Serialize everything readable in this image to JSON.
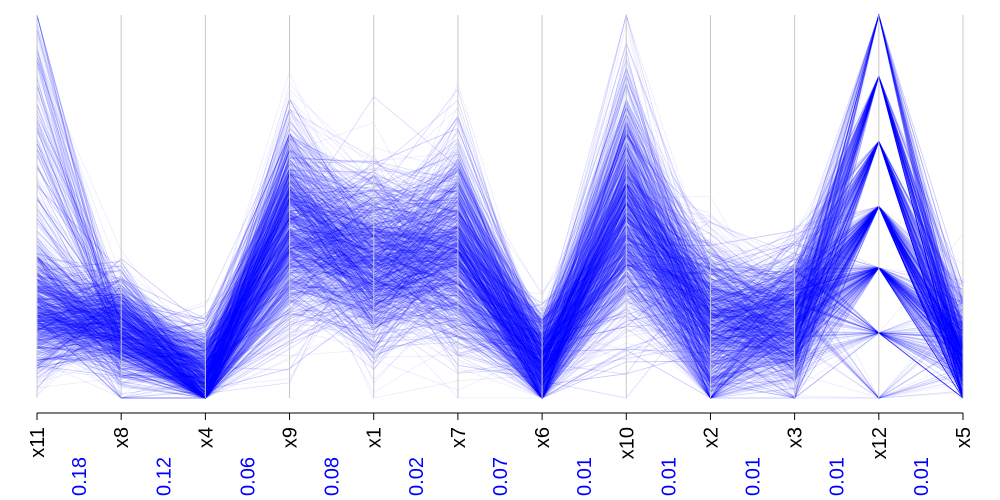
{
  "chart_data": {
    "type": "parallel-coordinates",
    "axes": [
      "x11",
      "x8",
      "x4",
      "x9",
      "x1",
      "x7",
      "x6",
      "x10",
      "x2",
      "x3",
      "x12",
      "x5"
    ],
    "between_axis_values": [
      "0.18",
      "0.12",
      "0.06",
      "0.08",
      "0.02",
      "0.07",
      "0.01",
      "0.01",
      "0.01",
      "0.01",
      "0.01"
    ],
    "line_color": "#0000ff",
    "label_color": "#0000ff",
    "axis_color": "#c8c8c8",
    "axis_labels_color": "#000000",
    "axis_range_normalized": [
      0,
      1
    ],
    "typical_profile": {
      "x11": 0.22,
      "x8": 0.18,
      "x4": 0.05,
      "x9": 0.45,
      "x1": 0.35,
      "x7": 0.38,
      "x6": 0.08,
      "x10": 0.45,
      "x2": 0.18,
      "x3": 0.2,
      "x12": 0.5,
      "x5": 0.1
    },
    "x12_discrete_levels": [
      0.0,
      0.17,
      0.34,
      0.5,
      0.67,
      0.84,
      1.0
    ]
  }
}
